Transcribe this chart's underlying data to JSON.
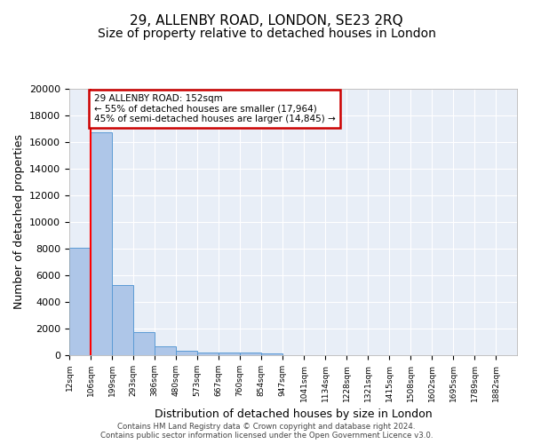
{
  "title": "29, ALLENBY ROAD, LONDON, SE23 2RQ",
  "subtitle": "Size of property relative to detached houses in London",
  "xlabel": "Distribution of detached houses by size in London",
  "ylabel": "Number of detached properties",
  "bin_labels": [
    "12sqm",
    "106sqm",
    "199sqm",
    "293sqm",
    "386sqm",
    "480sqm",
    "573sqm",
    "667sqm",
    "760sqm",
    "854sqm",
    "947sqm",
    "1041sqm",
    "1134sqm",
    "1228sqm",
    "1321sqm",
    "1415sqm",
    "1508sqm",
    "1602sqm",
    "1695sqm",
    "1789sqm",
    "1882sqm"
  ],
  "bar_heights": [
    8100,
    16700,
    5300,
    1750,
    700,
    320,
    230,
    200,
    180,
    150,
    0,
    0,
    0,
    0,
    0,
    0,
    0,
    0,
    0,
    0,
    0
  ],
  "bar_color": "#aec6e8",
  "bar_edge_color": "#5b9bd5",
  "background_color": "#e8eef7",
  "red_line_x": 1.0,
  "annotation_line1": "29 ALLENBY ROAD: 152sqm",
  "annotation_line2": "← 55% of detached houses are smaller (17,964)",
  "annotation_line3": "45% of semi-detached houses are larger (14,845) →",
  "annotation_box_color": "#ffffff",
  "annotation_box_edge_color": "#cc0000",
  "ylim": [
    0,
    20000
  ],
  "yticks": [
    0,
    2000,
    4000,
    6000,
    8000,
    10000,
    12000,
    14000,
    16000,
    18000,
    20000
  ],
  "footer": "Contains HM Land Registry data © Crown copyright and database right 2024.\nContains public sector information licensed under the Open Government Licence v3.0.",
  "title_fontsize": 11,
  "subtitle_fontsize": 10,
  "ylabel_fontsize": 9,
  "xlabel_fontsize": 9
}
